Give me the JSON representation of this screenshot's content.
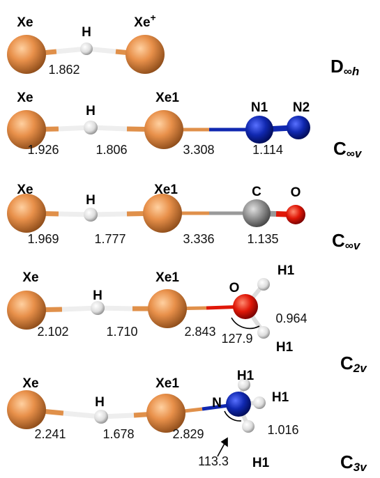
{
  "molecules": [
    {
      "atoms": [
        {
          "label": "Xe"
        },
        {
          "label": "H"
        },
        {
          "label": "Xe",
          "charge": "+"
        }
      ],
      "bond_lengths": [
        "1.862"
      ],
      "point_group": {
        "symbol": "D",
        "subscript": "∞h"
      }
    },
    {
      "atoms": [
        {
          "label": "Xe"
        },
        {
          "label": "H"
        },
        {
          "label": "Xe1"
        },
        {
          "label": "N1"
        },
        {
          "label": "N2"
        }
      ],
      "bond_lengths": [
        "1.926",
        "1.806",
        "3.308",
        "1.114"
      ],
      "point_group": {
        "symbol": "C",
        "subscript": "∞v"
      }
    },
    {
      "atoms": [
        {
          "label": "Xe"
        },
        {
          "label": "H"
        },
        {
          "label": "Xe1"
        },
        {
          "label": "C"
        },
        {
          "label": "O"
        }
      ],
      "bond_lengths": [
        "1.969",
        "1.777",
        "3.336",
        "1.135"
      ],
      "point_group": {
        "symbol": "C",
        "subscript": "∞v"
      }
    },
    {
      "atoms": [
        {
          "label": "Xe"
        },
        {
          "label": "H"
        },
        {
          "label": "Xe1"
        },
        {
          "label": "O"
        },
        {
          "label": "H1"
        },
        {
          "label": "H1"
        }
      ],
      "bond_lengths": [
        "2.102",
        "1.710",
        "2.843",
        "0.964"
      ],
      "angle": "127.9",
      "point_group": {
        "symbol": "C",
        "subscript": "2v"
      }
    },
    {
      "atoms": [
        {
          "label": "Xe"
        },
        {
          "label": "H"
        },
        {
          "label": "Xe1"
        },
        {
          "label": "N"
        },
        {
          "label": "H1"
        },
        {
          "label": "H1"
        },
        {
          "label": "H1"
        }
      ],
      "bond_lengths": [
        "2.241",
        "1.678",
        "2.829",
        "1.016"
      ],
      "angle": "113.3",
      "point_group": {
        "symbol": "C",
        "subscript": "3v"
      }
    }
  ]
}
